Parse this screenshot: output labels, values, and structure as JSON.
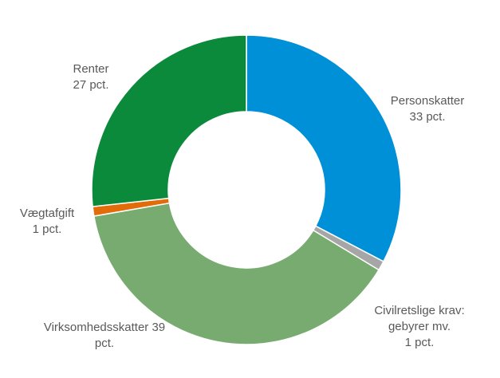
{
  "chart_data": {
    "type": "pie",
    "variant": "donut",
    "title": "",
    "unit": "pct.",
    "slices": [
      {
        "name": "Personskatter",
        "value": 33,
        "color": "#0090d8",
        "label_lines": [
          "Personskatter",
          "33 pct."
        ]
      },
      {
        "name": "Civilretslige krav: gebyrer mv.",
        "value": 1,
        "color": "#a6a6a6",
        "label_lines": [
          "Civilretslige krav:",
          "gebyrer mv.",
          "1 pct."
        ]
      },
      {
        "name": "Virksomhedsskatter",
        "value": 39,
        "color": "#77ab6f",
        "label_lines": [
          "Virksomhedsskatter 39",
          "pct."
        ]
      },
      {
        "name": "Vægtafgift",
        "value": 1,
        "color": "#e36c0a",
        "label_lines": [
          "Vægtafgift",
          "1 pct."
        ]
      },
      {
        "name": "Renter",
        "value": 27,
        "color": "#0a8a3a",
        "label_lines": [
          "Renter",
          "27 pct."
        ]
      }
    ]
  }
}
